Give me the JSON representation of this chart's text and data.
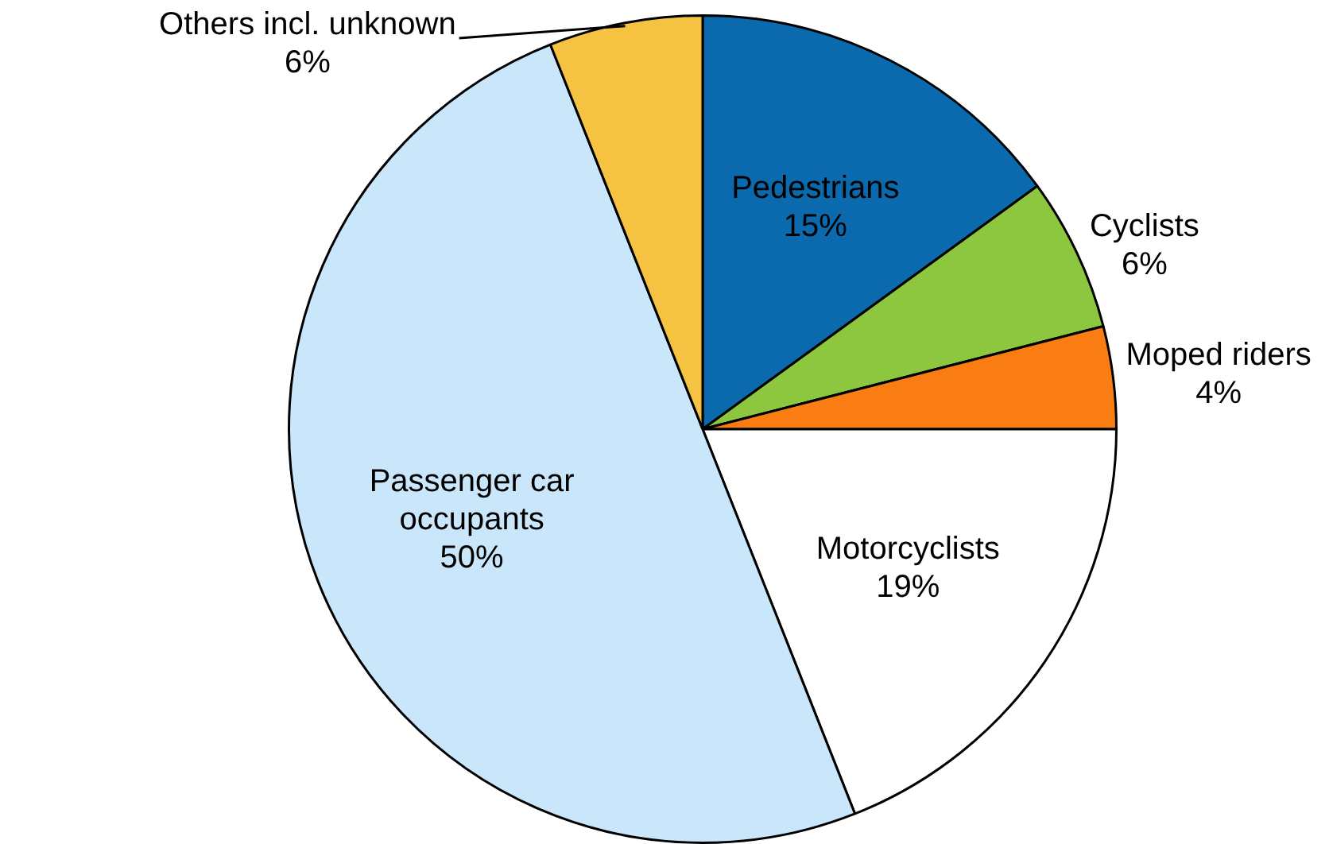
{
  "chart_data": {
    "type": "pie",
    "categories": [
      "Pedestrians",
      "Cyclists",
      "Moped riders",
      "Motorcyclists",
      "Passenger car occupants",
      "Others incl. unknown"
    ],
    "values": [
      15,
      6,
      4,
      19,
      50,
      6
    ],
    "value_labels": [
      "15%",
      "6%",
      "4%",
      "19%",
      "50%",
      "6%"
    ],
    "colors": [
      "#0a6aad",
      "#8dc63f",
      "#fa7d14",
      "#ffffff",
      "#c9e6fa",
      "#f5c242"
    ],
    "legend": false
  }
}
